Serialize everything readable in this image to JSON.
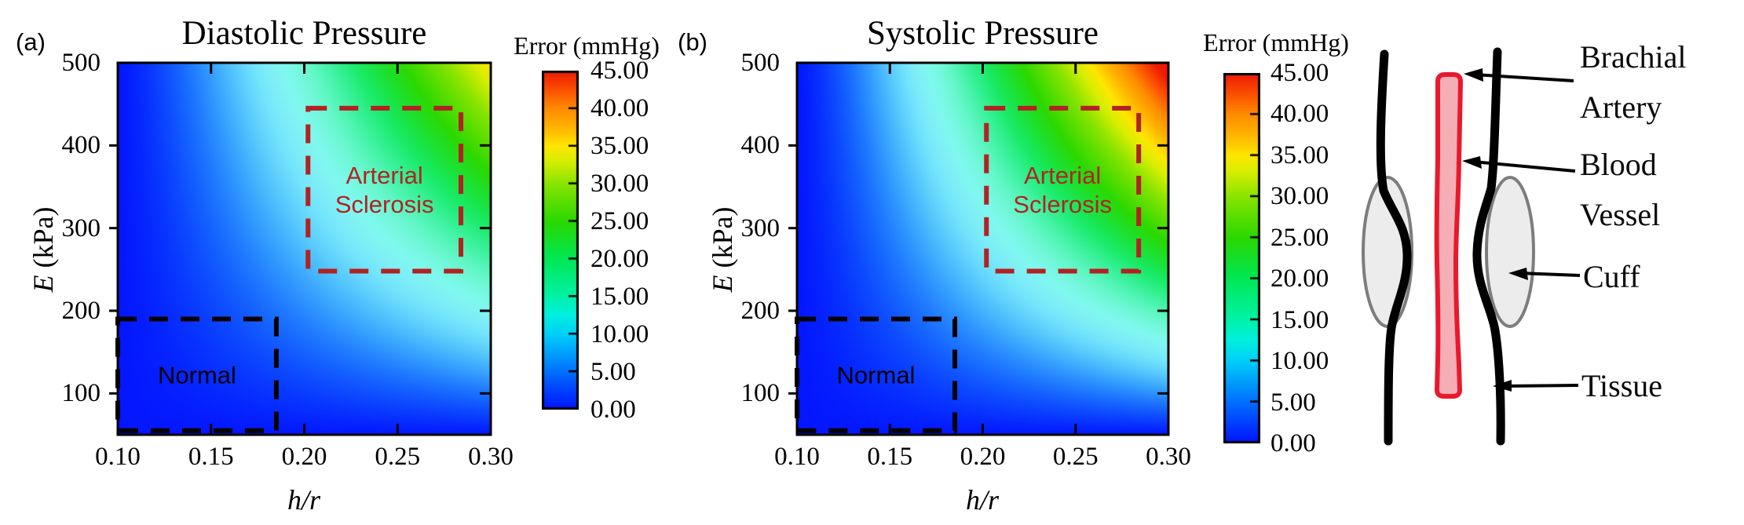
{
  "figure": {
    "background": "#ffffff",
    "colormap_name": "jet-style (blue to red)",
    "colormap_stops": [
      [
        0,
        "#0013ff"
      ],
      [
        5,
        "#0070ff"
      ],
      [
        10,
        "#00d0f8"
      ],
      [
        12.5,
        "#00f0e0"
      ],
      [
        15,
        "#00f2a8"
      ],
      [
        20,
        "#00e855"
      ],
      [
        25,
        "#2ad800"
      ],
      [
        30,
        "#8ae400"
      ],
      [
        33,
        "#d8ee00"
      ],
      [
        35,
        "#ffe600"
      ],
      [
        37.5,
        "#ffb400"
      ],
      [
        40,
        "#ff8c00"
      ],
      [
        42.5,
        "#fb5000"
      ],
      [
        45,
        "#ef1a00"
      ]
    ]
  },
  "chart_data": [
    {
      "type": "heatmap",
      "panel_label": "(a)",
      "title": "Diastolic Pressure",
      "xlabel": "h/r",
      "ylabel": "E (kPa)",
      "ylabel_italic": "E",
      "ylabel_rest": " (kPa)",
      "x_range": [
        0.1,
        0.3
      ],
      "y_range": [
        50,
        500
      ],
      "x_tick_values": [
        0.1,
        0.15,
        0.2,
        0.25,
        0.3
      ],
      "x_tick_labels": [
        "0.10",
        "0.15",
        "0.20",
        "0.25",
        "0.30"
      ],
      "y_tick_values": [
        100,
        200,
        300,
        400,
        500
      ],
      "y_tick_labels": [
        "100",
        "200",
        "300",
        "400",
        "500"
      ],
      "grid": false,
      "colorbar": {
        "title": "Error (mmHg)",
        "min": 0,
        "max": 45,
        "tick_values": [
          45,
          40,
          35,
          30,
          25,
          20,
          15,
          10,
          5,
          0
        ],
        "tick_labels": [
          "45.00",
          "40.00",
          "35.00",
          "30.00",
          "25.00",
          "20.00",
          "15.00",
          "10.00",
          "5.00",
          "0.00"
        ]
      },
      "error_surface": {
        "description": "error is 0 along left and bottom edges and grows smoothly toward the top-right corner",
        "formula": "error = scale * ((x-0.1)/0.2)^1.25 * ((E-50)/450)^0.95",
        "scale": 35,
        "top_right_corner_error": 35
      },
      "annotations": [
        {
          "label": "Normal",
          "color": "#000000",
          "x": [
            0.1,
            0.185
          ],
          "y": [
            55,
            190
          ]
        },
        {
          "label": "Arterial Sclerosis",
          "color": "#b22222",
          "x": [
            0.202,
            0.284
          ],
          "y": [
            248,
            445
          ]
        }
      ]
    },
    {
      "type": "heatmap",
      "panel_label": "(b)",
      "title": "Systolic Pressure",
      "xlabel": "h/r",
      "ylabel": "E (kPa)",
      "ylabel_italic": "E",
      "ylabel_rest": " (kPa)",
      "x_range": [
        0.1,
        0.3
      ],
      "y_range": [
        50,
        500
      ],
      "x_tick_values": [
        0.1,
        0.15,
        0.2,
        0.25,
        0.3
      ],
      "x_tick_labels": [
        "0.10",
        "0.15",
        "0.20",
        "0.25",
        "0.30"
      ],
      "y_tick_values": [
        100,
        200,
        300,
        400,
        500
      ],
      "y_tick_labels": [
        "100",
        "200",
        "300",
        "400",
        "500"
      ],
      "grid": false,
      "colorbar": {
        "title": "Error (mmHg)",
        "min": 0,
        "max": 45,
        "tick_values": [
          45,
          40,
          35,
          30,
          25,
          20,
          15,
          10,
          5,
          0
        ],
        "tick_labels": [
          "45.00",
          "40.00",
          "35.00",
          "30.00",
          "25.00",
          "20.00",
          "15.00",
          "10.00",
          "5.00",
          "0.00"
        ]
      },
      "error_surface": {
        "description": "same shape as panel (a) but larger errors; top-right corner saturates the 45 mmHg color scale (red)",
        "formula": "error = scale * ((x-0.1)/0.2)^1.25 * ((E-50)/450)^0.95",
        "scale": 47,
        "top_right_corner_error": 45
      },
      "annotations": [
        {
          "label": "Normal",
          "color": "#000000",
          "x": [
            0.1,
            0.185
          ],
          "y": [
            55,
            190
          ]
        },
        {
          "label": "Arterial Sclerosis",
          "color": "#b22222",
          "x": [
            0.202,
            0.284
          ],
          "y": [
            248,
            445
          ]
        }
      ]
    }
  ],
  "diagram": {
    "labels": [
      {
        "id": "brachial-artery",
        "lines": [
          "Brachial",
          "Artery"
        ]
      },
      {
        "id": "blood-vessel",
        "lines": [
          "Blood",
          "Vessel"
        ]
      },
      {
        "id": "cuff",
        "lines": [
          "Cuff"
        ]
      },
      {
        "id": "tissue",
        "lines": [
          "Tissue"
        ]
      }
    ],
    "colors": {
      "vessel_stroke": "#e8192c",
      "vessel_fill": "#f5aeb6",
      "cuff_fill": "#ececec",
      "cuff_stroke": "#7d7d7d",
      "tissue": "#000000",
      "arrow": "#000000"
    }
  }
}
